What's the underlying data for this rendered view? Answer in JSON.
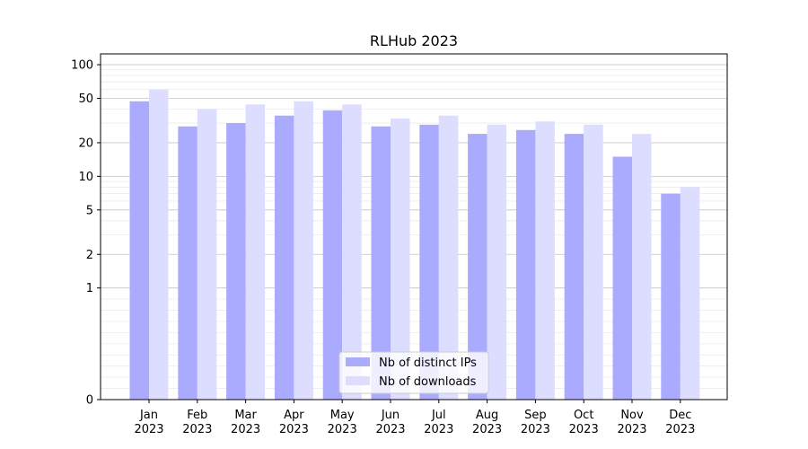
{
  "chart_data": {
    "type": "bar",
    "title": "RLHub 2023",
    "xlabel": "",
    "ylabel": "",
    "categories": [
      [
        "Jan",
        "2023"
      ],
      [
        "Feb",
        "2023"
      ],
      [
        "Mar",
        "2023"
      ],
      [
        "Apr",
        "2023"
      ],
      [
        "May",
        "2023"
      ],
      [
        "Jun",
        "2023"
      ],
      [
        "Jul",
        "2023"
      ],
      [
        "Aug",
        "2023"
      ],
      [
        "Sep",
        "2023"
      ],
      [
        "Oct",
        "2023"
      ],
      [
        "Nov",
        "2023"
      ],
      [
        "Dec",
        "2023"
      ]
    ],
    "series": [
      {
        "name": "Nb of distinct IPs",
        "color": "#aaaaff",
        "values": [
          47,
          28,
          30,
          35,
          39,
          28,
          29,
          24,
          26,
          24,
          15,
          7
        ]
      },
      {
        "name": "Nb of downloads",
        "color": "#ddddff",
        "values": [
          60,
          40,
          44,
          47,
          44,
          33,
          35,
          29,
          31,
          29,
          24,
          8
        ]
      }
    ],
    "y_scale": "symlog",
    "ylim": [
      0,
      125
    ],
    "y_ticks": [
      0,
      1,
      2,
      5,
      10,
      20,
      50,
      100
    ],
    "grid": true,
    "legend_position": "lower-center"
  }
}
